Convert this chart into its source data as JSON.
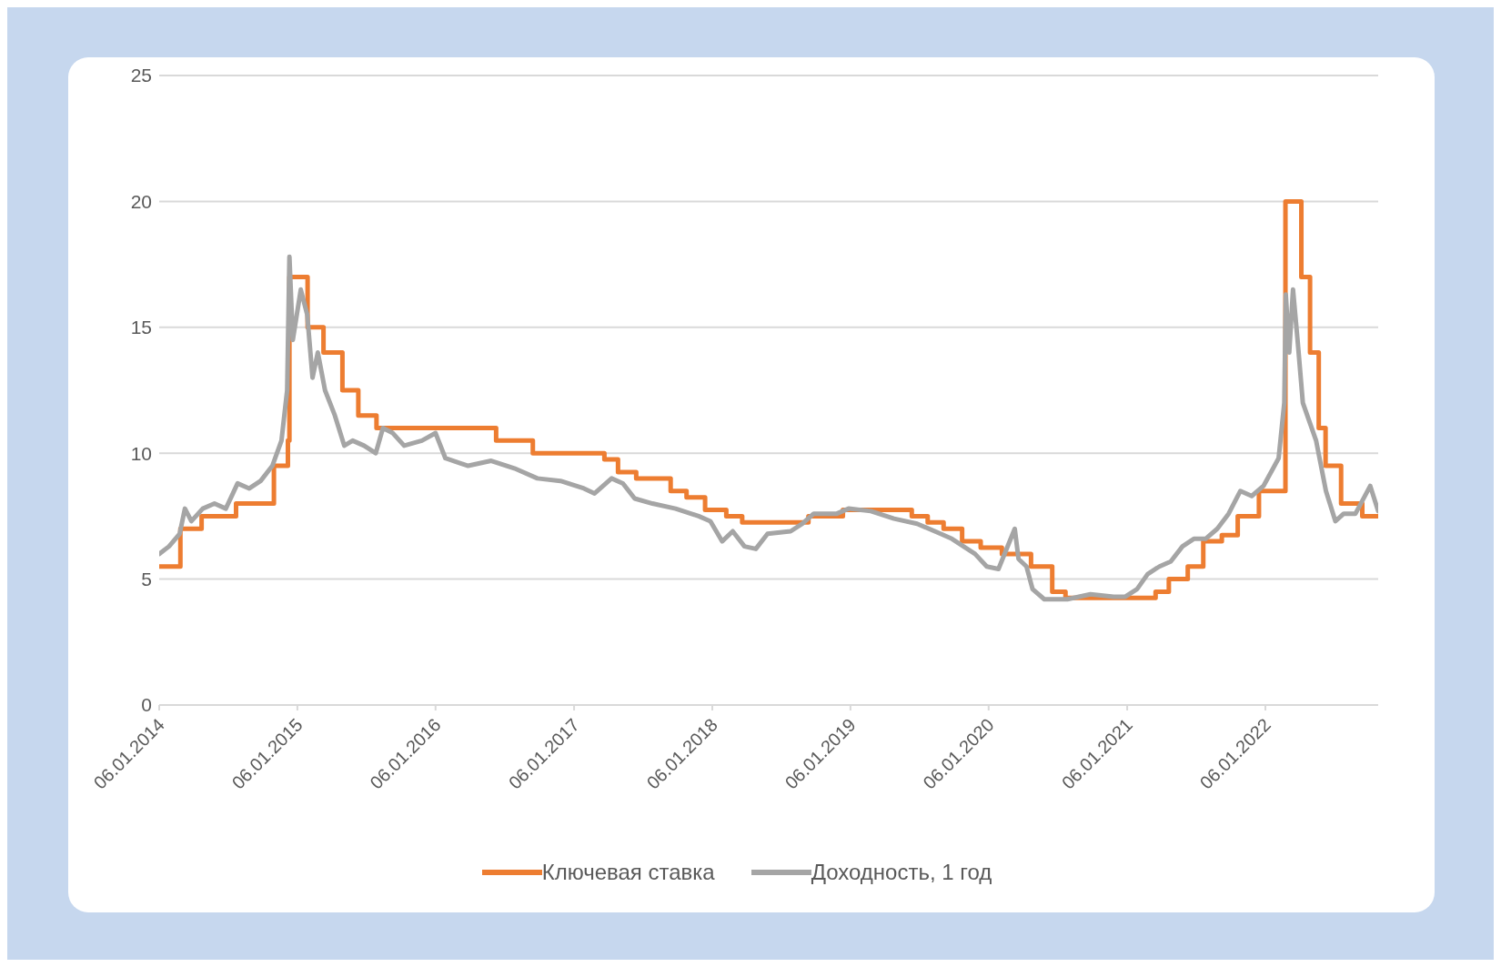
{
  "chart_data": {
    "type": "line",
    "xlim": [
      "2014-01-06",
      "2022-10-31"
    ],
    "xticks": [
      {
        "value": "2014-01-06",
        "label": "06.01.2014"
      },
      {
        "value": "2015-01-06",
        "label": "06.01.2015"
      },
      {
        "value": "2016-01-06",
        "label": "06.01.2016"
      },
      {
        "value": "2017-01-06",
        "label": "06.01.2017"
      },
      {
        "value": "2018-01-06",
        "label": "06.01.2018"
      },
      {
        "value": "2019-01-06",
        "label": "06.01.2019"
      },
      {
        "value": "2020-01-06",
        "label": "06.01.2020"
      },
      {
        "value": "2021-01-06",
        "label": "06.01.2021"
      },
      {
        "value": "2022-01-06",
        "label": "06.01.2022"
      }
    ],
    "ylim": [
      0,
      25
    ],
    "yticks": [
      0,
      5,
      10,
      15,
      20,
      25
    ],
    "grid": "y",
    "legend": "bottom",
    "marker": "none",
    "line_style": "solid",
    "series": [
      {
        "name": "Ключевая ставка",
        "type": "step",
        "color": "#ed7d31",
        "x": [
          "2014-01-06",
          "2014-03-03",
          "2014-04-28",
          "2014-07-28",
          "2014-11-05",
          "2014-12-12",
          "2014-12-16",
          "2015-02-02",
          "2015-03-16",
          "2015-05-05",
          "2015-06-16",
          "2015-08-03",
          "2016-06-14",
          "2016-09-19",
          "2017-03-27",
          "2017-05-02",
          "2017-06-19",
          "2017-09-18",
          "2017-10-30",
          "2017-12-18",
          "2018-02-12",
          "2018-03-26",
          "2018-09-17",
          "2018-12-17",
          "2019-06-17",
          "2019-07-29",
          "2019-09-09",
          "2019-10-28",
          "2019-12-16",
          "2020-02-10",
          "2020-04-27",
          "2020-06-22",
          "2020-07-27",
          "2021-03-22",
          "2021-04-26",
          "2021-06-15",
          "2021-07-26",
          "2021-09-13",
          "2021-10-25",
          "2021-12-20",
          "2022-02-28",
          "2022-04-11",
          "2022-05-04",
          "2022-05-27",
          "2022-06-14",
          "2022-07-25",
          "2022-09-19",
          "2022-10-31"
        ],
        "values": [
          5.5,
          7,
          7.5,
          8,
          9.5,
          10.5,
          17,
          15,
          14,
          12.5,
          11.5,
          11,
          10.5,
          10,
          9.75,
          9.25,
          9,
          8.5,
          8.25,
          7.75,
          7.5,
          7.25,
          7.5,
          7.75,
          7.5,
          7.25,
          7,
          6.5,
          6.25,
          6,
          5.5,
          4.5,
          4.25,
          4.5,
          5,
          5.5,
          6.5,
          6.75,
          7.5,
          8.5,
          20,
          17,
          14,
          11,
          9.5,
          8,
          7.5,
          7.5
        ]
      },
      {
        "name": "Доходность, 1 год",
        "type": "line",
        "color": "#a5a5a5",
        "x": [
          "2014-01-06",
          "2014-02-01",
          "2014-03-01",
          "2014-03-15",
          "2014-04-01",
          "2014-05-01",
          "2014-06-01",
          "2014-07-01",
          "2014-08-01",
          "2014-09-01",
          "2014-10-01",
          "2014-11-01",
          "2014-11-25",
          "2014-12-10",
          "2014-12-16",
          "2014-12-25",
          "2015-01-15",
          "2015-02-01",
          "2015-02-15",
          "2015-03-01",
          "2015-03-20",
          "2015-04-15",
          "2015-05-10",
          "2015-06-01",
          "2015-07-01",
          "2015-08-01",
          "2015-08-20",
          "2015-09-15",
          "2015-10-15",
          "2015-12-01",
          "2016-01-06",
          "2016-02-01",
          "2016-04-01",
          "2016-06-01",
          "2016-08-01",
          "2016-10-01",
          "2016-12-01",
          "2017-02-01",
          "2017-03-01",
          "2017-04-15",
          "2017-05-15",
          "2017-06-15",
          "2017-08-01",
          "2017-10-01",
          "2017-12-01",
          "2018-01-01",
          "2018-02-01",
          "2018-03-01",
          "2018-04-01",
          "2018-05-01",
          "2018-06-01",
          "2018-08-01",
          "2018-09-01",
          "2018-10-01",
          "2018-12-01",
          "2019-01-01",
          "2019-03-01",
          "2019-05-01",
          "2019-07-01",
          "2019-09-01",
          "2019-10-01",
          "2019-12-01",
          "2020-01-01",
          "2020-02-01",
          "2020-03-15",
          "2020-03-25",
          "2020-04-15",
          "2020-05-01",
          "2020-06-01",
          "2020-08-01",
          "2020-10-01",
          "2020-12-01",
          "2021-01-01",
          "2021-02-01",
          "2021-03-01",
          "2021-04-01",
          "2021-05-01",
          "2021-06-01",
          "2021-07-01",
          "2021-08-01",
          "2021-09-01",
          "2021-10-01",
          "2021-11-01",
          "2021-12-01",
          "2022-01-01",
          "2022-02-10",
          "2022-02-25",
          "2022-03-01",
          "2022-03-10",
          "2022-03-20",
          "2022-04-01",
          "2022-04-15",
          "2022-05-20",
          "2022-06-15",
          "2022-07-10",
          "2022-08-01",
          "2022-09-01",
          "2022-10-10",
          "2022-10-31"
        ],
        "values": [
          6,
          6.3,
          6.8,
          7.8,
          7.3,
          7.8,
          8,
          7.8,
          8.8,
          8.6,
          8.9,
          9.5,
          10.5,
          12.5,
          17.8,
          14.5,
          16.5,
          15.5,
          13,
          14,
          12.5,
          11.5,
          10.3,
          10.5,
          10.3,
          10,
          11,
          10.8,
          10.3,
          10.5,
          10.8,
          9.8,
          9.5,
          9.7,
          9.4,
          9,
          8.9,
          8.6,
          8.4,
          9,
          8.8,
          8.2,
          8,
          7.8,
          7.5,
          7.3,
          6.5,
          6.9,
          6.3,
          6.2,
          6.8,
          6.9,
          7.2,
          7.6,
          7.6,
          7.8,
          7.7,
          7.4,
          7.2,
          6.8,
          6.6,
          6,
          5.5,
          5.4,
          7,
          5.8,
          5.5,
          4.6,
          4.2,
          4.2,
          4.4,
          4.3,
          4.3,
          4.6,
          5.2,
          5.5,
          5.7,
          6.3,
          6.6,
          6.6,
          7,
          7.6,
          8.5,
          8.3,
          8.7,
          9.8,
          12,
          16.3,
          14,
          16.5,
          14.5,
          12,
          10.5,
          8.5,
          7.3,
          7.6,
          7.6,
          8.7,
          7.7
        ]
      }
    ]
  }
}
